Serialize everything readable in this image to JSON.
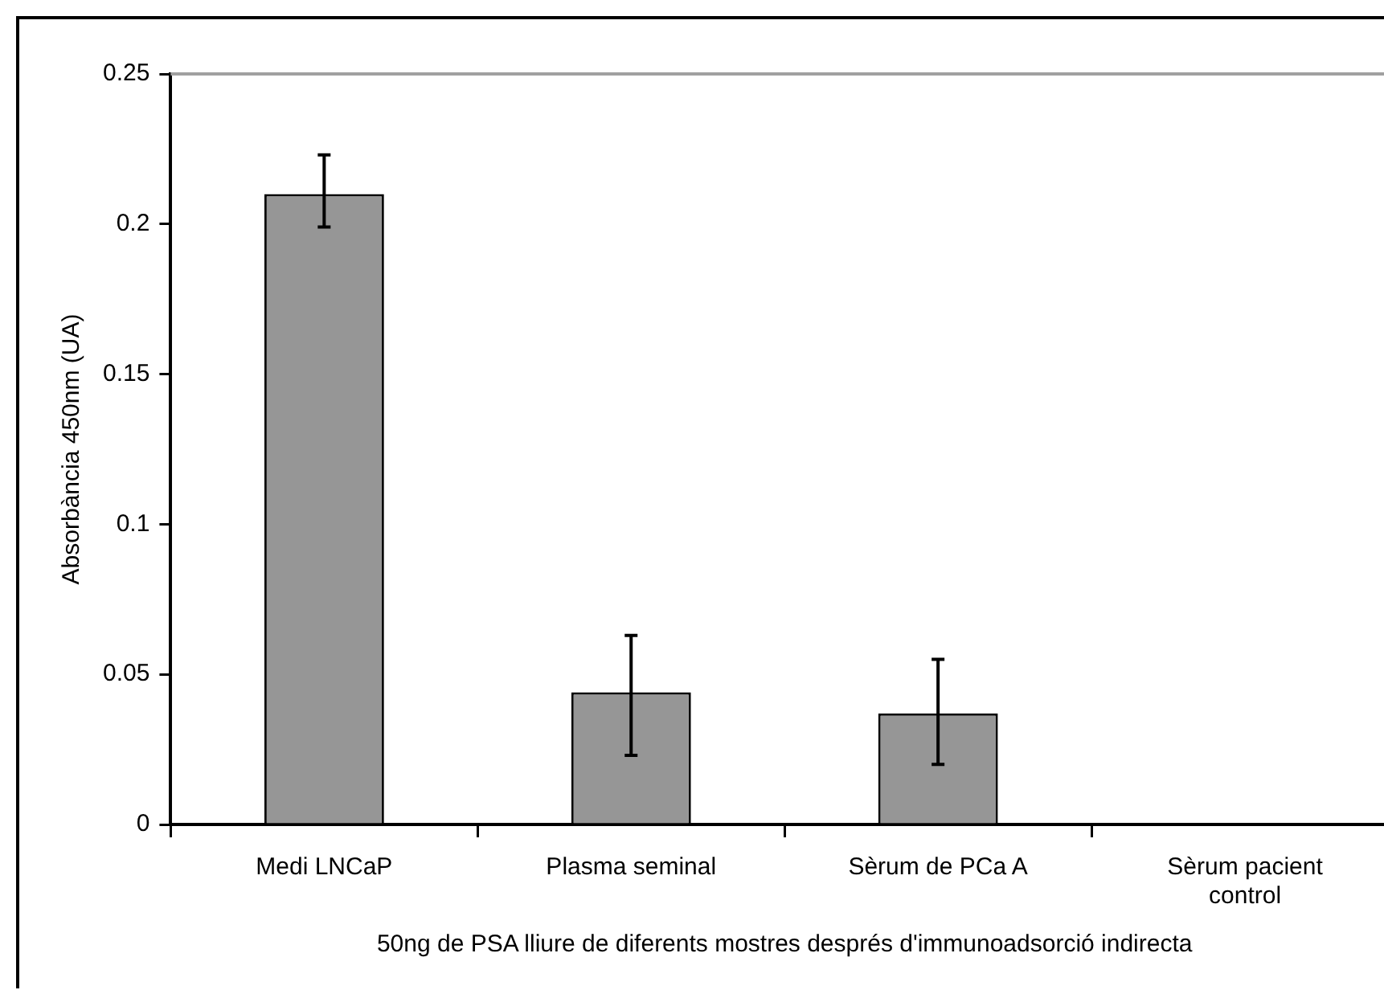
{
  "chart_data": {
    "type": "bar",
    "xlabel": "50ng de PSA lliure de diferents mostres després d'immunoadsorció indirecta",
    "ylabel": "Absorbància 450nm (UA)",
    "categories": [
      "Medi LNCaP",
      "Plasma seminal",
      "Sèrum de PCa A",
      "Sèrum pacient control"
    ],
    "values": [
      0.21,
      0.044,
      0.037,
      0
    ],
    "errors": [
      [
        0.199,
        0.223
      ],
      [
        0.023,
        0.063
      ],
      [
        0.02,
        0.055
      ],
      null
    ],
    "color": "#969696",
    "ylim": [
      0,
      0.25
    ],
    "yticks": [
      0,
      0.05,
      0.1,
      0.15,
      0.2,
      0.25
    ],
    "grid": false,
    "legend": false
  }
}
